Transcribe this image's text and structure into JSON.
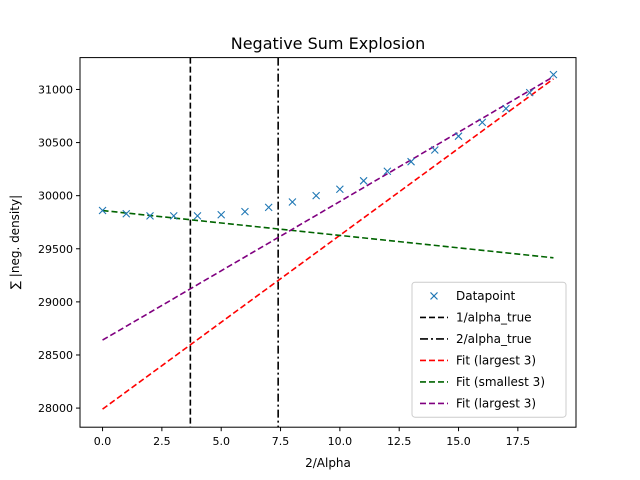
{
  "chart_data": {
    "type": "scatter",
    "title": "Negative Sum Explosion",
    "xlabel": "2/Alpha",
    "ylabel": "∑ |neg. density|",
    "xlim": [
      -0.95,
      19.95
    ],
    "ylim": [
      27820,
      31300
    ],
    "x_ticks": [
      0.0,
      2.5,
      5.0,
      7.5,
      10.0,
      12.5,
      15.0,
      17.5
    ],
    "x_tick_labels": [
      "0.0",
      "2.5",
      "5.0",
      "7.5",
      "10.0",
      "12.5",
      "15.0",
      "17.5"
    ],
    "y_ticks": [
      28000,
      28500,
      29000,
      29500,
      30000,
      30500,
      31000
    ],
    "y_tick_labels": [
      "28000",
      "28500",
      "29000",
      "29500",
      "30000",
      "30500",
      "31000"
    ],
    "grid": false,
    "legend_position": "lower-right",
    "series": [
      {
        "name": "Datapoint",
        "kind": "marker",
        "marker": "x",
        "color": "#1f77b4",
        "x": [
          0,
          1,
          2,
          3,
          4,
          5,
          6,
          7,
          8,
          9,
          10,
          11,
          12,
          13,
          14,
          15,
          16,
          17,
          18,
          19
        ],
        "y": [
          29860,
          29830,
          29810,
          29810,
          29810,
          29820,
          29850,
          29890,
          29940,
          30000,
          30060,
          30140,
          30230,
          30320,
          30430,
          30560,
          30690,
          30820,
          30970,
          31140
        ]
      },
      {
        "name": "1/alpha_true",
        "kind": "vline",
        "dash": "dashed",
        "color": "#000000",
        "x": 3.7
      },
      {
        "name": "2/alpha_true",
        "kind": "vline",
        "dash": "dashdot",
        "color": "#000000",
        "x": 7.4
      },
      {
        "name": "Fit (largest 3)",
        "kind": "line",
        "dash": "dashed",
        "color": "#ff0000",
        "x": [
          0,
          19
        ],
        "y": [
          27990,
          31100
        ]
      },
      {
        "name": "Fit (smallest 3)",
        "kind": "line",
        "dash": "dashed",
        "color": "#006400",
        "x": [
          0,
          19
        ],
        "y": [
          29860,
          29415
        ]
      },
      {
        "name": "Fit (largest  3)",
        "kind": "line",
        "dash": "dashed",
        "color": "#800080",
        "x": [
          0,
          19
        ],
        "y": [
          28640,
          31120
        ]
      }
    ]
  }
}
